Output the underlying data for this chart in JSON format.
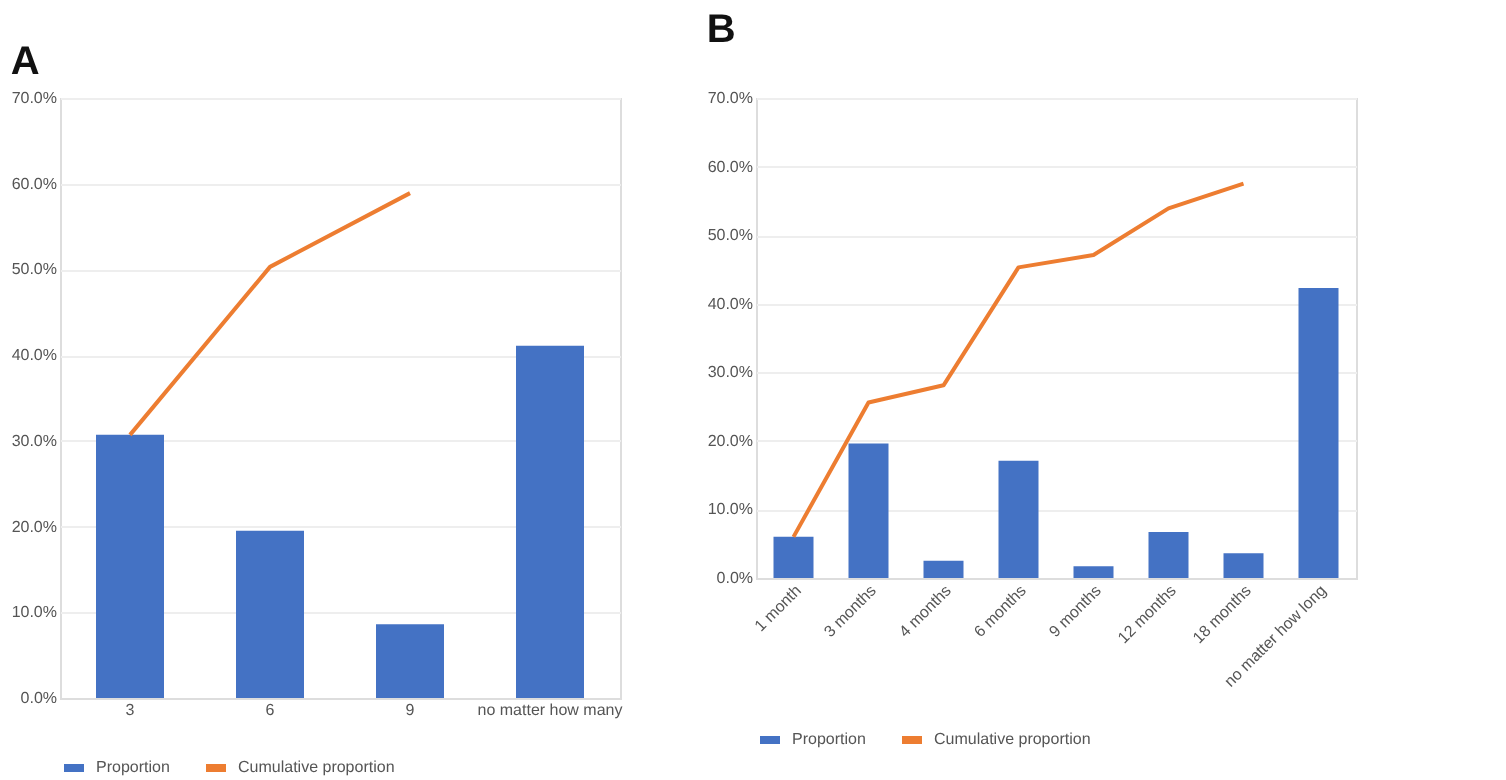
{
  "chart_data": [
    {
      "type": "bar",
      "title": "A",
      "categories": [
        "3",
        "6",
        "9",
        "no matter how many"
      ],
      "series": [
        {
          "name": "Proportion",
          "color": "#4472c4",
          "values": [
            30.7,
            19.5,
            8.6,
            41.1
          ]
        },
        {
          "name": "Cumulative proportion",
          "type": "line",
          "color": "#ed7d31",
          "values": [
            30.7,
            50.3,
            58.9,
            null
          ]
        }
      ],
      "ylim": [
        0,
        70
      ],
      "yticks": [
        {
          "value": 0,
          "label": "0.0%"
        },
        {
          "value": 10,
          "label": "10.0%"
        },
        {
          "value": 20,
          "label": "20.0%"
        },
        {
          "value": 30,
          "label": "30.0%"
        },
        {
          "value": 40,
          "label": "40.0%"
        },
        {
          "value": 50,
          "label": "50.0%"
        },
        {
          "value": 60,
          "label": "60.0%"
        },
        {
          "value": 70,
          "label": "70.0%"
        }
      ],
      "grid": "y",
      "legend": "bottom"
    },
    {
      "type": "bar",
      "title": "B",
      "categories": [
        "1 month",
        "3 months",
        "4 months",
        "6 months",
        "9 months",
        "12 months",
        "18 months",
        "no matter how long"
      ],
      "series": [
        {
          "name": "Proportion",
          "color": "#4472c4",
          "values": [
            6.0,
            19.6,
            2.5,
            17.1,
            1.7,
            6.7,
            3.6,
            42.3
          ]
        },
        {
          "name": "Cumulative proportion",
          "type": "line",
          "color": "#ed7d31",
          "values": [
            6.0,
            25.6,
            28.1,
            45.3,
            47.1,
            53.9,
            57.5,
            null
          ]
        }
      ],
      "ylim": [
        0,
        70
      ],
      "yticks": [
        {
          "value": 0,
          "label": "0.0%"
        },
        {
          "value": 10,
          "label": "10.0%"
        },
        {
          "value": 20,
          "label": "20.0%"
        },
        {
          "value": 30,
          "label": "30.0%"
        },
        {
          "value": 40,
          "label": "40.0%"
        },
        {
          "value": 50,
          "label": "50.0%"
        },
        {
          "value": 60,
          "label": "60.0%"
        },
        {
          "value": 70,
          "label": "70.0%"
        }
      ],
      "grid": "y",
      "legend": "bottom"
    }
  ]
}
